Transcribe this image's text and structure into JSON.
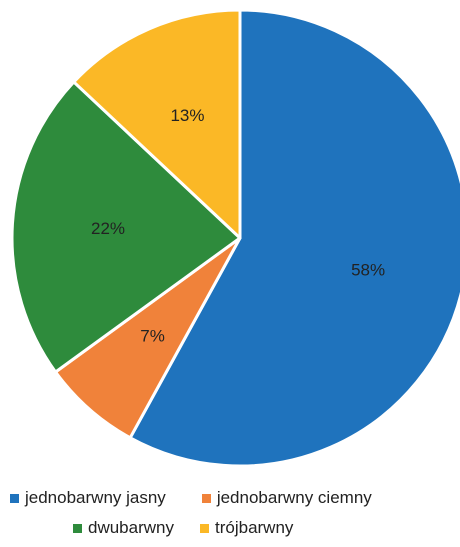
{
  "chart_data": {
    "type": "pie",
    "title": "",
    "slices": [
      {
        "label": "jednobarwny jasny",
        "value": 58,
        "data_label": "58%",
        "color": "#1f73bd"
      },
      {
        "label": "jednobarwny ciemny",
        "value": 7,
        "data_label": "7%",
        "color": "#f0823a"
      },
      {
        "label": "dwubarwny",
        "value": 22,
        "data_label": "22%",
        "color": "#2e8b3c"
      },
      {
        "label": "trójbarwny",
        "value": 13,
        "data_label": "13%",
        "color": "#fbb826"
      }
    ],
    "start": "12 o'clock",
    "direction": "clockwise",
    "legend_position": "bottom"
  }
}
